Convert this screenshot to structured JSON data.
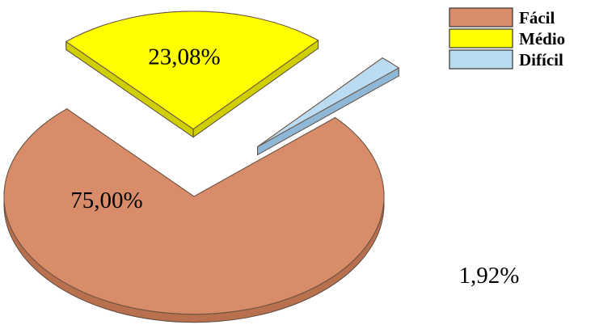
{
  "chart_data": {
    "type": "pie",
    "style": "3d-exploded",
    "slices": [
      {
        "label": "Fácil",
        "value": 75.0,
        "display": "75,00%",
        "color": "#D98C6A",
        "shade": "#B8704F"
      },
      {
        "label": "Médio",
        "value": 23.08,
        "display": "23,08%",
        "color": "#FFFF00",
        "shade": "#CFCF00"
      },
      {
        "label": "Difícil",
        "value": 1.92,
        "display": "1,92%",
        "color": "#B9DCF2",
        "shade": "#8FB8D6"
      }
    ],
    "legend_placement": "top-right",
    "title": ""
  }
}
